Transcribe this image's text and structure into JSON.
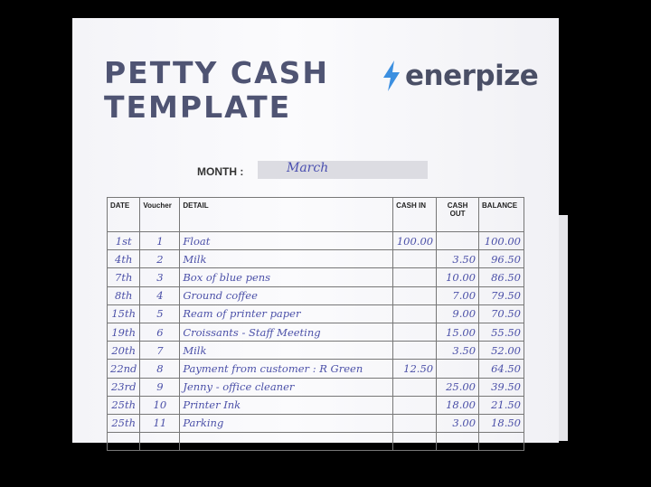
{
  "title_lines": [
    "PETTY CASH",
    "TEMPLATE"
  ],
  "brand": {
    "name": "enerpize",
    "color": "#3b8fe0"
  },
  "month": {
    "label": "MONTH :",
    "value": "March"
  },
  "headers": [
    "DATE",
    "Voucher",
    "DETAIL",
    "CASH IN",
    "CASH OUT",
    "BALANCE"
  ],
  "rows": [
    [
      "1st",
      "1",
      "Float",
      "100.00",
      "",
      "100.00"
    ],
    [
      "4th",
      "2",
      "Milk",
      "",
      "3.50",
      "96.50"
    ],
    [
      "7th",
      "3",
      "Box of blue pens",
      "",
      "10.00",
      "86.50"
    ],
    [
      "8th",
      "4",
      "Ground coffee",
      "",
      "7.00",
      "79.50"
    ],
    [
      "15th",
      "5",
      "Ream of printer paper",
      "",
      "9.00",
      "70.50"
    ],
    [
      "19th",
      "6",
      "Croissants - Staff Meeting",
      "",
      "15.00",
      "55.50"
    ],
    [
      "20th",
      "7",
      "Milk",
      "",
      "3.50",
      "52.00"
    ],
    [
      "22nd",
      "8",
      "Payment from customer : R Green",
      "12.50",
      "",
      "64.50"
    ],
    [
      "23rd",
      "9",
      "Jenny - office cleaner",
      "",
      "25.00",
      "39.50"
    ],
    [
      "25th",
      "10",
      "Printer Ink",
      "",
      "18.00",
      "21.50"
    ],
    [
      "25th",
      "11",
      "Parking",
      "",
      "3.00",
      "18.50"
    ],
    [
      "",
      "",
      "",
      "",
      "",
      ""
    ]
  ]
}
